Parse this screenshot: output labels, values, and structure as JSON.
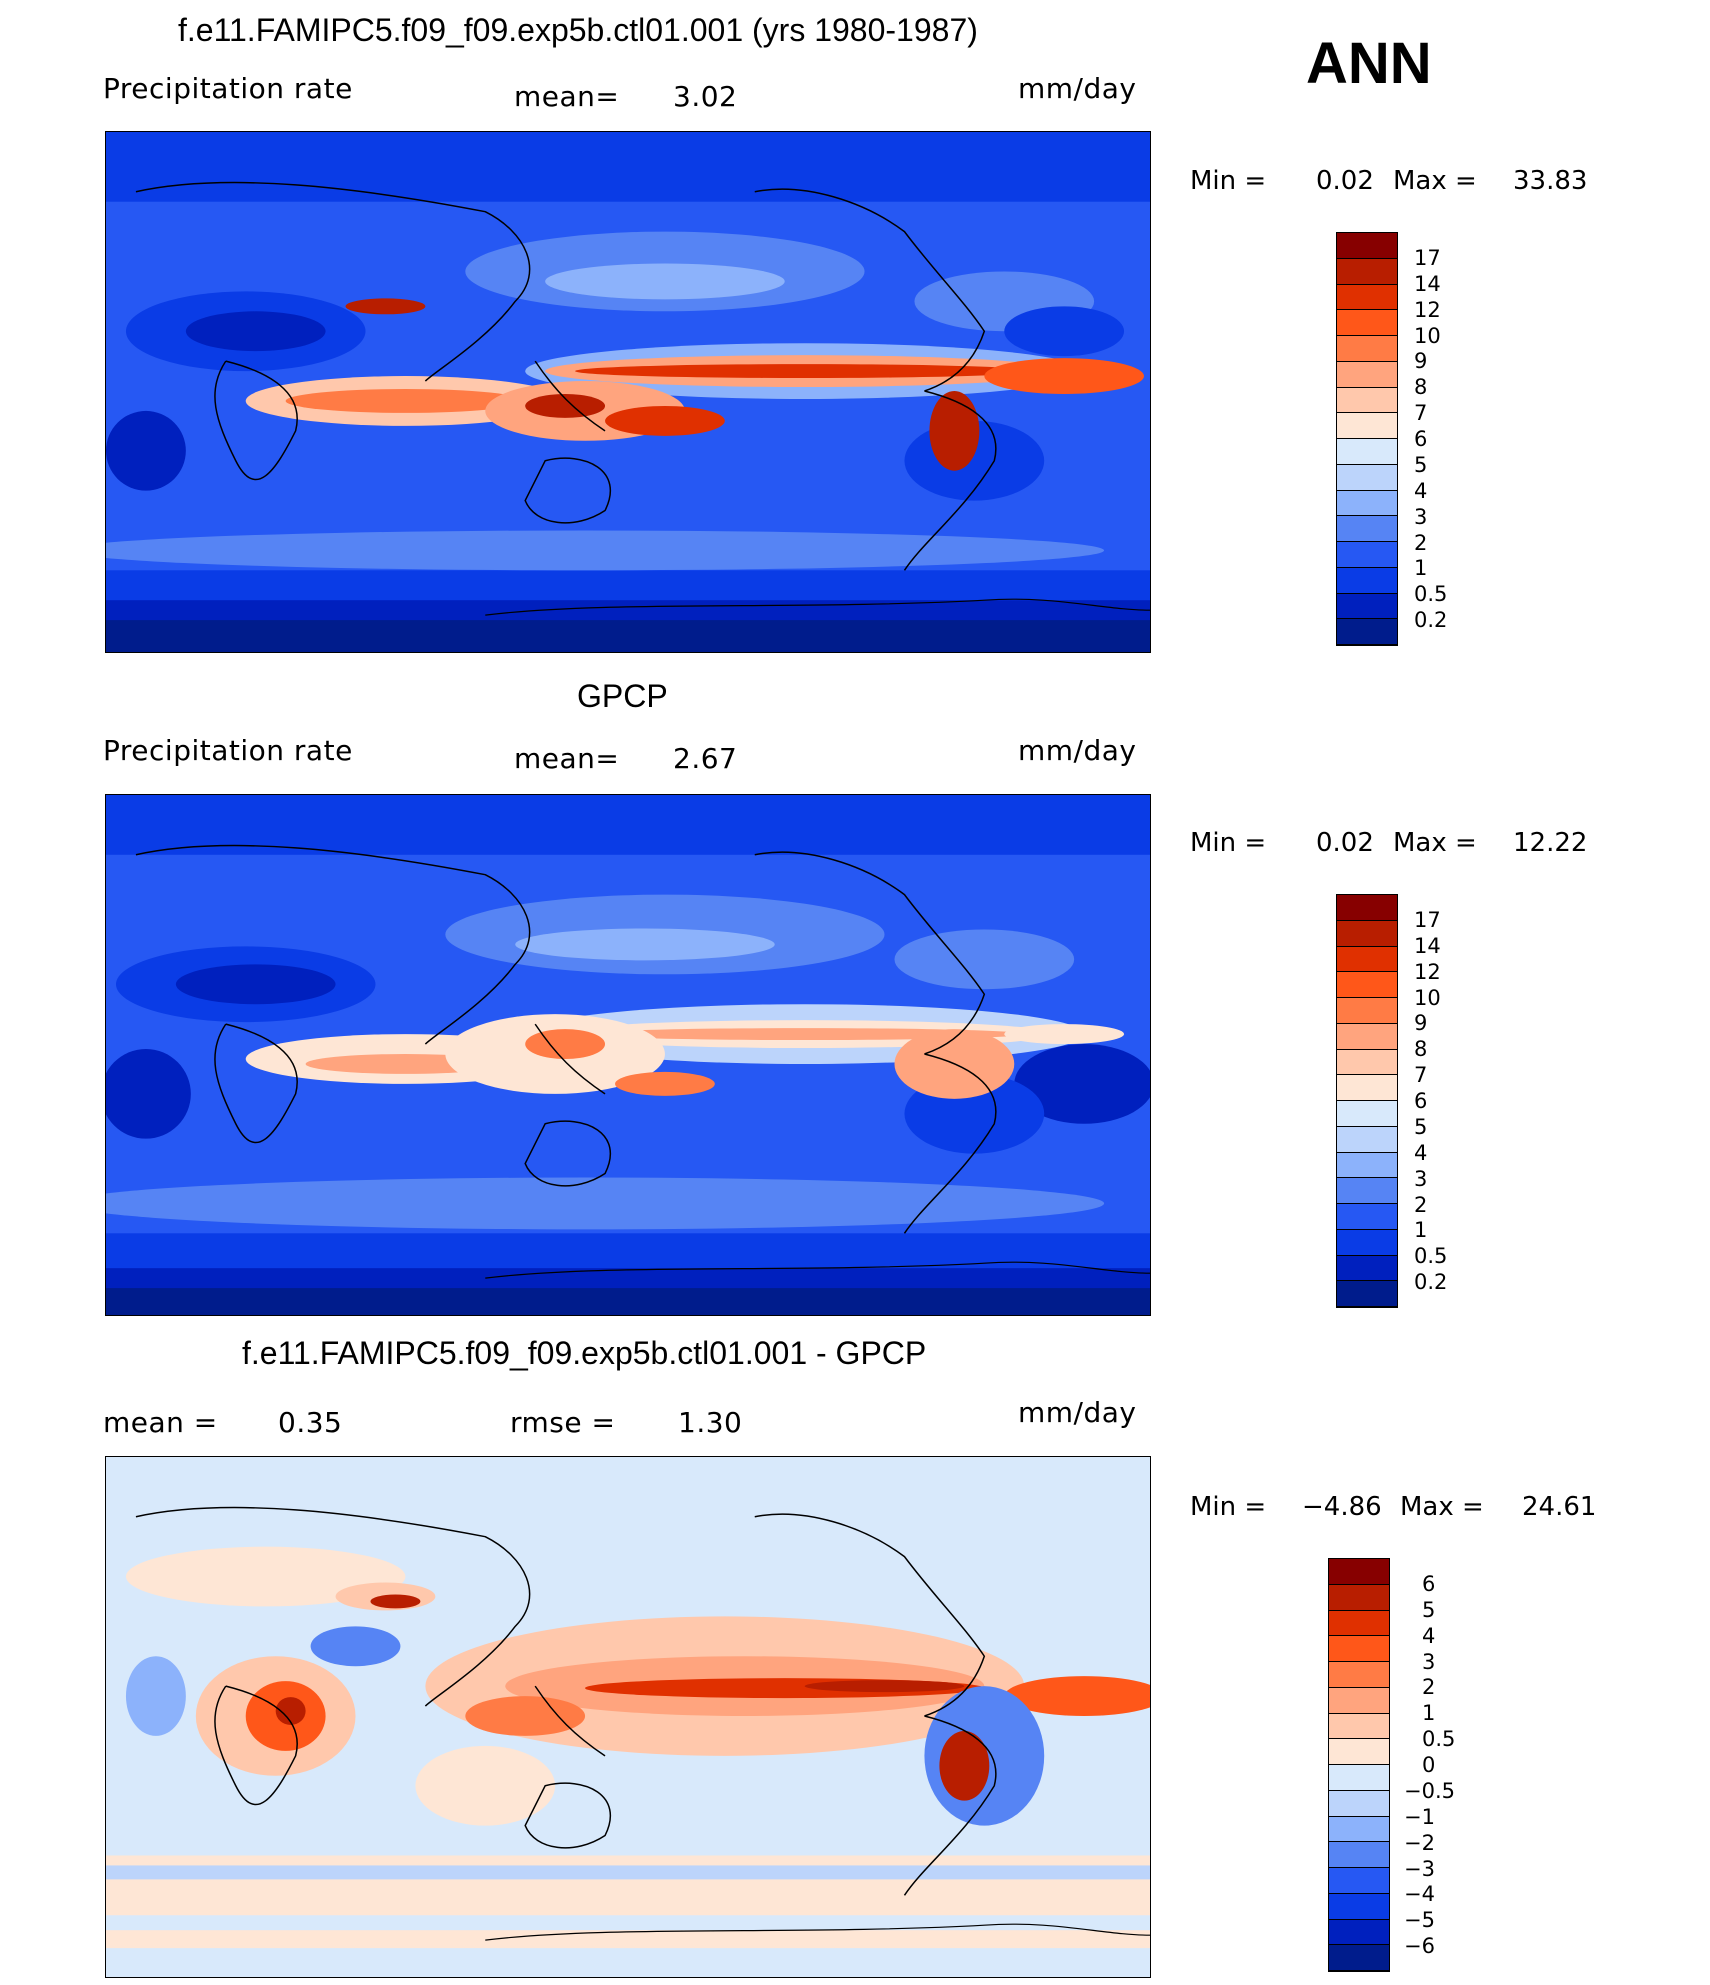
{
  "header": {
    "ann_label": "ANN"
  },
  "panels": [
    {
      "id": "model",
      "title": "f.e11.FAMIPC5.f09_f09.exp5b.ctl01.001 (yrs 1980-1987)",
      "left_label": "Precipitation  rate",
      "mean_label": "mean=",
      "mean_value": "3.02",
      "units": "mm/day",
      "min_label": "Min  =",
      "min_value": "0.02",
      "max_label": "Max  =",
      "max_value": "33.83",
      "levels": [
        "17",
        "14",
        "12",
        "10",
        "9",
        "8",
        "7",
        "6",
        "5",
        "4",
        "3",
        "2",
        "1",
        "0.5",
        "0.2"
      ],
      "colors": [
        "#870000",
        "#b81e00",
        "#e03000",
        "#ff5719",
        "#ff7b45",
        "#ffa47e",
        "#ffc8ac",
        "#fee6d5",
        "#d8e9fb",
        "#bcd4fb",
        "#8cb2fb",
        "#5684f4",
        "#2658f3",
        "#0a3ce6",
        "#0020be",
        "#001c8c"
      ]
    },
    {
      "id": "obs",
      "title": "GPCP",
      "left_label": "Precipitation  rate",
      "mean_label": "mean=",
      "mean_value": "2.67",
      "units": "mm/day",
      "min_label": "Min  =",
      "min_value": "0.02",
      "max_label": "Max  =",
      "max_value": "12.22",
      "levels": [
        "17",
        "14",
        "12",
        "10",
        "9",
        "8",
        "7",
        "6",
        "5",
        "4",
        "3",
        "2",
        "1",
        "0.5",
        "0.2"
      ],
      "colors": [
        "#870000",
        "#b81e00",
        "#e03000",
        "#ff5719",
        "#ff7b45",
        "#ffa47e",
        "#ffc8ac",
        "#fee6d5",
        "#d8e9fb",
        "#bcd4fb",
        "#8cb2fb",
        "#5684f4",
        "#2658f3",
        "#0a3ce6",
        "#0020be",
        "#001c8c"
      ]
    },
    {
      "id": "diff",
      "title": "f.e11.FAMIPC5.f09_f09.exp5b.ctl01.001 - GPCP",
      "left_label": "mean  =",
      "mean_label": "",
      "mean_value": "0.35",
      "rmse_label": "rmse  =",
      "rmse_value": "1.30",
      "units": "mm/day",
      "min_label": "Min  =",
      "min_value": "−4.86",
      "max_label": "Max  =",
      "max_value": "24.61",
      "levels": [
        "6",
        "5",
        "4",
        "3",
        "2",
        "1",
        "0.5",
        "0",
        "−0.5",
        "−1",
        "−2",
        "−3",
        "−4",
        "−5",
        "−6"
      ],
      "colors": [
        "#870000",
        "#b81e00",
        "#e03000",
        "#ff5719",
        "#ff7b45",
        "#ffa47e",
        "#ffc8ac",
        "#fee6d5",
        "#d8e9fb",
        "#bcd4fb",
        "#8cb2fb",
        "#5684f4",
        "#2658f3",
        "#0a3ce6",
        "#0020be",
        "#001c8c"
      ]
    }
  ]
}
